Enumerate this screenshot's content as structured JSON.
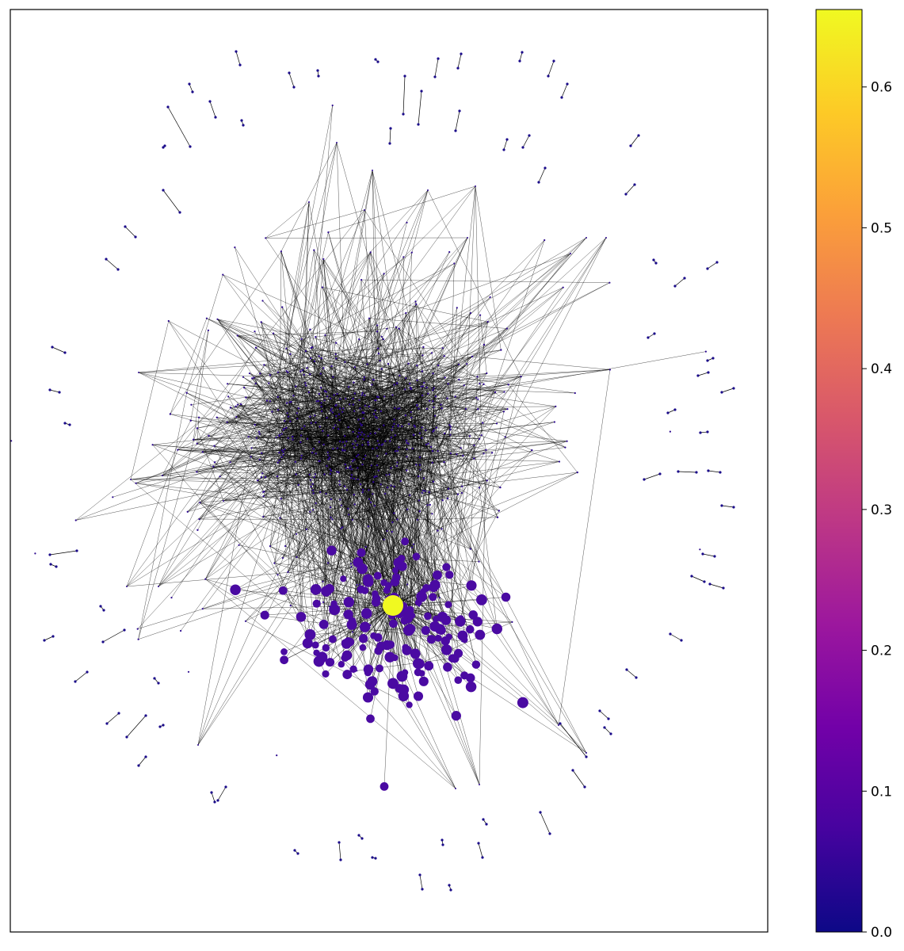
{
  "chart_data": {
    "type": "scatter",
    "subtype": "network-graph",
    "title": "",
    "xlabel": "",
    "ylabel": "",
    "main_axes_ticks": "none",
    "grid": false,
    "node_color": "#2d0a8f",
    "hub_node_color": "#f0f921",
    "edge_color": "#000000",
    "colorbar": {
      "colormap": "plasma",
      "range": [
        0.0,
        0.655
      ],
      "ticks": [
        0.0,
        0.1,
        0.2,
        0.3,
        0.4,
        0.5,
        0.6
      ],
      "tick_labels": [
        "0.0",
        "0.1",
        "0.2",
        "0.3",
        "0.4",
        "0.5",
        "0.6"
      ],
      "stops": [
        "#0d0887",
        "#46039f",
        "#7201a8",
        "#9c179e",
        "#bd3786",
        "#d8576b",
        "#ed7953",
        "#fb9f3a",
        "#fdca26",
        "#f0f921"
      ]
    },
    "components": {
      "giant_component": "dense core with a high-centrality hub",
      "isolated_pairs": "many two-node components around the periphery"
    }
  }
}
